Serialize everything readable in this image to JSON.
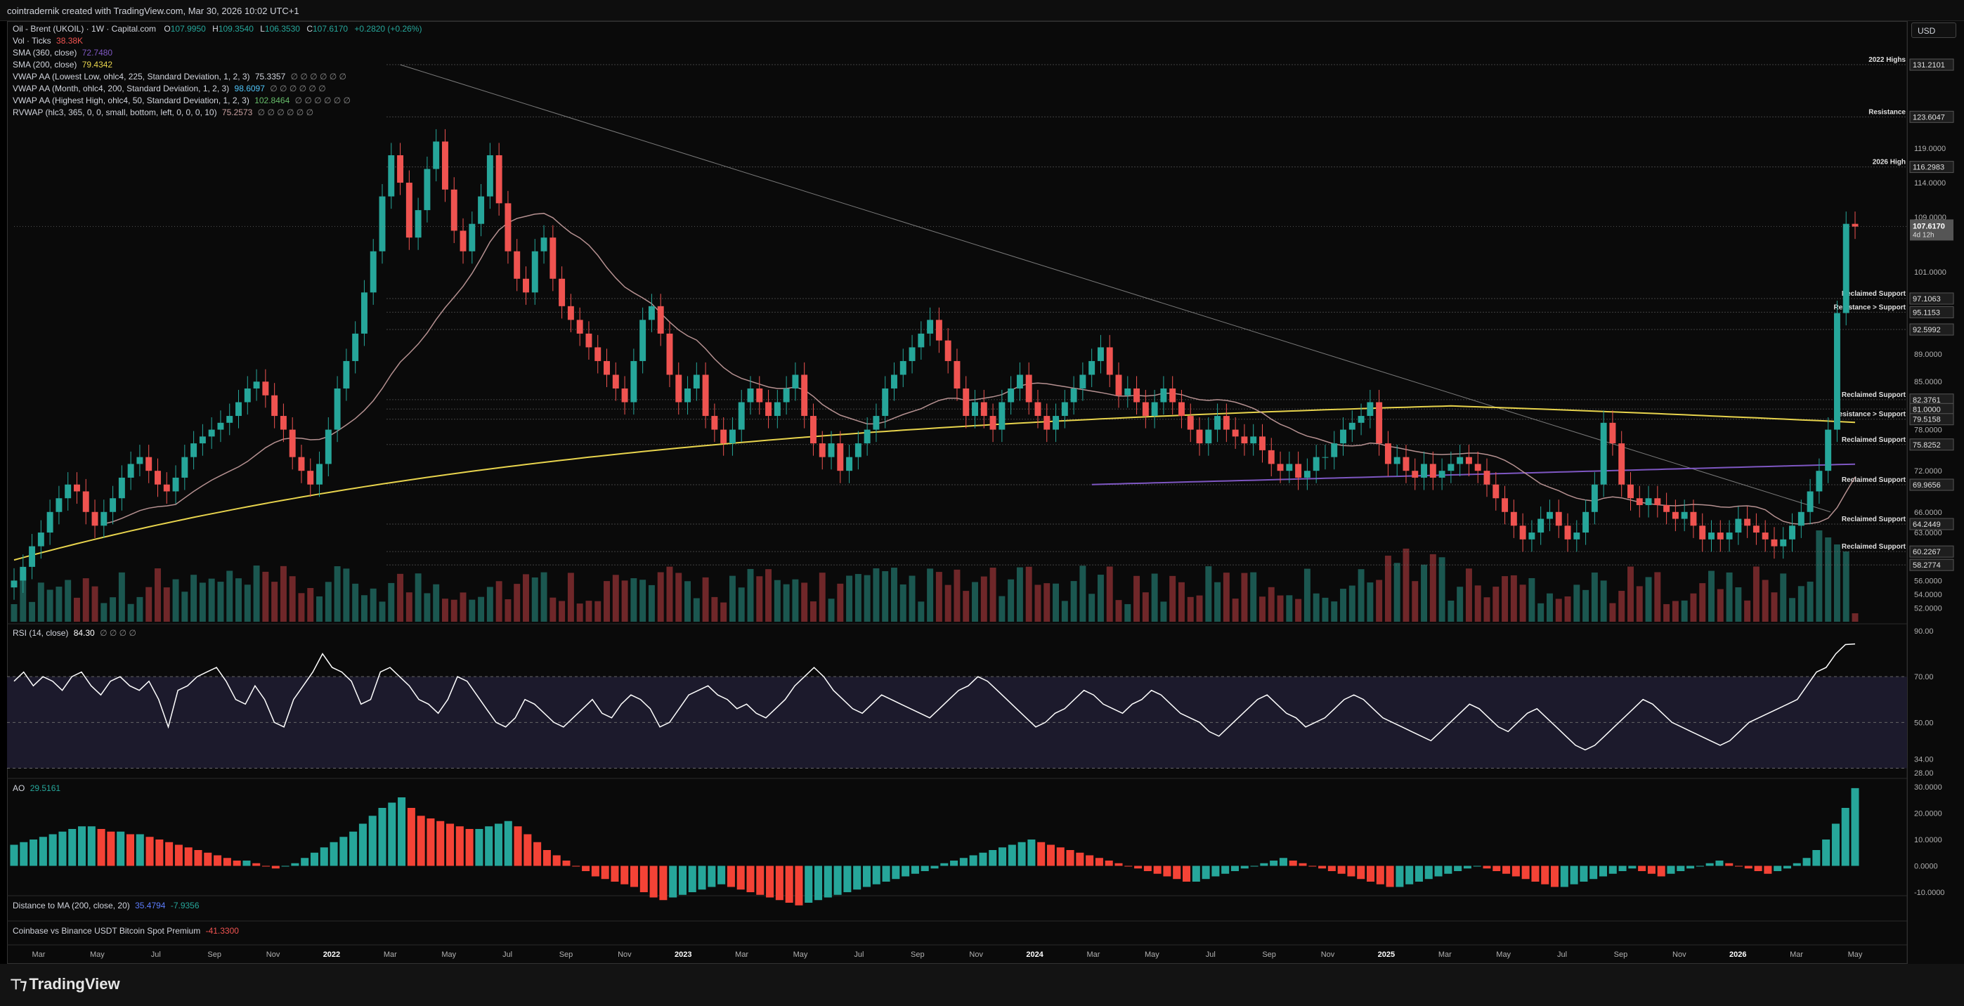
{
  "header": {
    "title": "cointradernik created with TradingView.com, Mar 30, 2026 10:02 UTC+1"
  },
  "currency_button": "USD",
  "legend": {
    "symbol": "Oil - Brent (UKOIL) · 1W · Capital.com",
    "o_label": "O",
    "o": "107.9950",
    "h_label": "H",
    "h": "109.3540",
    "l_label": "L",
    "l": "106.3530",
    "c_label": "C",
    "c": "107.6170",
    "chg": "+0.2820 (+0.26%)",
    "vol_label": "Vol · Ticks",
    "vol": "38.38K",
    "sma360_label": "SMA (360, close)",
    "sma360": "72.7480",
    "sma200_label": "SMA (200, close)",
    "sma200": "79.4342",
    "vwap1_label": "VWAP AA (Lowest Low, ohlc4, 225, Standard Deviation, 1, 2, 3)",
    "vwap1": "75.3357",
    "vwap2_label": "VWAP AA (Month, ohlc4, 200, Standard Deviation, 1, 2, 3)",
    "vwap2": "98.6097",
    "vwap3_label": "VWAP AA (Highest High, ohlc4, 50, Standard Deviation, 1, 2, 3)",
    "vwap3": "102.8464",
    "rvwap_label": "RVWAP (hlc3, 365, 0, 0, small, bottom, left, 0, 0, 0, 10)",
    "rvwap": "75.2573",
    "empties": "∅ ∅ ∅ ∅ ∅ ∅"
  },
  "colors": {
    "up": "#26a69a",
    "down": "#ef5350",
    "sma200": "#e8d44d",
    "sma360": "#7e57c2",
    "vwap": "#c9a0a0",
    "rsi_fill": "#1c1a2c",
    "ao_up": "#26a69a",
    "ao_down": "#f44336",
    "grid": "#1a1a1a"
  },
  "rsi_panel": {
    "label": "RSI (14, close)",
    "value": "84.30",
    "empties": "∅ ∅ ∅ ∅"
  },
  "ao_panel": {
    "label": "AO",
    "value": "29.5161"
  },
  "distance_panel": {
    "label": "Distance to MA (200, close, 20)",
    "v1": "35.4794",
    "v2": "-7.9356"
  },
  "premium_panel": {
    "label": "Coinbase vs Binance USDT Bitcoin Spot Premium",
    "value": "-41.3300"
  },
  "footer": {
    "brand": "TradingView"
  },
  "chart_data": [
    {
      "type": "candlestick",
      "title": "Oil - Brent (UKOIL) · 1W · Capital.com",
      "ylim": [
        50.0,
        135.0
      ],
      "x_time_labels": [
        "Mar",
        "May",
        "Jul",
        "Sep",
        "Nov",
        "2022",
        "Mar",
        "May",
        "Jul",
        "Sep",
        "Nov",
        "2023",
        "Mar",
        "May",
        "Jul",
        "Sep",
        "Nov",
        "2024",
        "Mar",
        "May",
        "Jul",
        "Sep",
        "Nov",
        "2025",
        "Mar",
        "May",
        "Jul",
        "Sep",
        "Nov",
        "2026",
        "Mar",
        "May"
      ],
      "y_tick_labels": [
        "119.0000",
        "114.0000",
        "109.0000",
        "101.0000",
        "89.0000",
        "85.0000",
        "78.0000",
        "72.0000",
        "66.0000",
        "63.0000",
        "56.0000",
        "54.0000",
        "52.0000"
      ],
      "price_labels": [
        {
          "value": "131.2101",
          "num": 131.21,
          "note": "2022 Highs"
        },
        {
          "value": "123.6047",
          "num": 123.6,
          "note": "Resistance"
        },
        {
          "value": "116.2983",
          "num": 116.3,
          "note": "2026 High"
        },
        {
          "value": "97.1063",
          "num": 97.11,
          "note": "Reclaimed Support"
        },
        {
          "value": "95.1153",
          "num": 95.12,
          "note": "Resistance > Support"
        },
        {
          "value": "92.5992",
          "num": 92.6,
          "note": ""
        },
        {
          "value": "82.3761",
          "num": 82.38,
          "note": "Reclaimed Support"
        },
        {
          "value": "81.0000",
          "num": 81.0,
          "note": ""
        },
        {
          "value": "79.5158",
          "num": 79.52,
          "note": "Resistance > Support"
        },
        {
          "value": "75.8252",
          "num": 75.83,
          "note": "Reclaimed Support"
        },
        {
          "value": "69.9656",
          "num": 69.97,
          "note": "Reclaimed Support"
        },
        {
          "value": "64.2449",
          "num": 64.24,
          "note": "Reclaimed Support"
        },
        {
          "value": "60.2267",
          "num": 60.23,
          "note": "Reclaimed Support"
        },
        {
          "value": "58.2774",
          "num": 58.28,
          "note": ""
        }
      ],
      "last_price": {
        "value": "107.6170",
        "num": 107.62,
        "countdown": "4d 12h"
      },
      "closes": [
        56,
        58,
        61,
        63,
        66,
        68,
        70,
        69,
        66,
        64,
        66,
        68,
        71,
        73,
        74,
        72,
        70,
        69,
        71,
        74,
        76,
        77,
        78,
        79,
        80,
        82,
        84,
        85,
        83,
        80,
        78,
        74,
        72,
        70,
        73,
        78,
        84,
        88,
        92,
        98,
        104,
        112,
        118,
        114,
        106,
        110,
        116,
        120,
        113,
        107,
        104,
        108,
        112,
        118,
        111,
        104,
        100,
        98,
        104,
        106,
        100,
        96,
        94,
        92,
        90,
        88,
        86,
        84,
        82,
        88,
        94,
        96,
        92,
        86,
        82,
        84,
        86,
        80,
        78,
        76,
        78,
        82,
        84,
        82,
        80,
        82,
        84,
        86,
        80,
        76,
        74,
        76,
        72,
        74,
        76,
        78,
        80,
        84,
        86,
        88,
        90,
        92,
        94,
        91,
        88,
        84,
        80,
        82,
        80,
        78,
        82,
        84,
        86,
        82,
        80,
        78,
        80,
        82,
        84,
        86,
        88,
        90,
        86,
        83,
        84,
        82,
        80,
        82,
        84,
        82,
        80,
        78,
        76,
        78,
        80,
        78,
        77,
        76,
        77,
        75,
        73,
        72,
        73,
        71,
        72,
        74,
        74,
        76,
        78,
        79,
        80,
        82,
        76,
        73,
        74,
        72,
        71,
        73,
        71,
        72,
        73,
        74,
        73,
        72,
        70,
        68,
        66,
        64,
        62,
        63,
        65,
        66,
        64,
        62,
        63,
        66,
        70,
        79,
        76,
        70,
        68,
        67,
        68,
        67,
        66,
        65,
        66,
        64,
        62,
        63,
        62,
        63,
        65,
        64,
        63,
        62,
        61,
        62,
        64,
        66,
        69,
        72,
        78,
        95,
        108,
        107.6
      ],
      "volume_note": "relative volume bars (Vol · Ticks)"
    },
    {
      "type": "line",
      "title": "RSI (14, close)",
      "ylim": [
        28,
        90
      ],
      "y_tick_labels": [
        "90.00",
        "70.00",
        "50.00",
        "34.00",
        "28.00"
      ],
      "values": [
        68,
        72,
        66,
        70,
        68,
        64,
        70,
        72,
        66,
        62,
        68,
        70,
        66,
        64,
        68,
        60,
        48,
        64,
        66,
        70,
        72,
        74,
        68,
        60,
        58,
        66,
        60,
        50,
        48,
        60,
        66,
        72,
        80,
        74,
        72,
        68,
        58,
        60,
        72,
        74,
        70,
        66,
        60,
        58,
        54,
        60,
        70,
        68,
        62,
        56,
        50,
        48,
        52,
        60,
        58,
        54,
        50,
        48,
        52,
        56,
        60,
        54,
        52,
        58,
        62,
        60,
        56,
        48,
        50,
        56,
        62,
        64,
        66,
        62,
        60,
        56,
        58,
        54,
        52,
        56,
        60,
        66,
        70,
        74,
        70,
        64,
        60,
        56,
        54,
        58,
        62,
        60,
        58,
        56,
        54,
        52,
        56,
        60,
        64,
        66,
        70,
        68,
        64,
        60,
        56,
        52,
        48,
        50,
        54,
        56,
        60,
        64,
        62,
        58,
        56,
        54,
        58,
        60,
        64,
        62,
        58,
        54,
        52,
        50,
        46,
        44,
        48,
        52,
        56,
        60,
        62,
        58,
        54,
        52,
        48,
        50,
        52,
        56,
        60,
        62,
        60,
        56,
        52,
        50,
        48,
        46,
        44,
        42,
        46,
        50,
        54,
        58,
        56,
        52,
        48,
        46,
        50,
        54,
        56,
        52,
        48,
        44,
        40,
        38,
        40,
        44,
        48,
        52,
        56,
        60,
        58,
        54,
        50,
        48,
        46,
        44,
        42,
        40,
        42,
        46,
        50,
        52,
        54,
        56,
        58,
        60,
        66,
        72,
        74,
        80,
        84,
        84.3
      ],
      "overbought": 70,
      "oversold": 30,
      "midline": 50
    },
    {
      "type": "histogram",
      "title": "AO",
      "ylim": [
        -10,
        30
      ],
      "y_tick_labels": [
        "30.0000",
        "20.0000",
        "10.0000",
        "0.0000",
        "-10.0000"
      ],
      "values": [
        8,
        9,
        10,
        11,
        12,
        13,
        14,
        15,
        15,
        14,
        13,
        13,
        12,
        12,
        11,
        10,
        9,
        8,
        7,
        6,
        5,
        4,
        3,
        2,
        2,
        1,
        0,
        -1,
        0,
        1,
        3,
        5,
        7,
        9,
        11,
        13,
        16,
        19,
        22,
        24,
        26,
        22,
        19,
        18,
        17,
        16,
        15,
        14,
        14,
        15,
        16,
        17,
        15,
        12,
        9,
        6,
        4,
        2,
        0,
        -2,
        -4,
        -5,
        -6,
        -7,
        -8,
        -10,
        -12,
        -13,
        -12,
        -11,
        -10,
        -9,
        -8,
        -7,
        -8,
        -9,
        -10,
        -11,
        -12,
        -13,
        -14,
        -15,
        -14,
        -13,
        -12,
        -11,
        -10,
        -9,
        -8,
        -7,
        -6,
        -5,
        -4,
        -3,
        -2,
        -1,
        1,
        2,
        3,
        4,
        5,
        6,
        7,
        8,
        9,
        10,
        9,
        8,
        7,
        6,
        5,
        4,
        3,
        2,
        1,
        0,
        -1,
        -2,
        -3,
        -4,
        -5,
        -6,
        -6,
        -5,
        -4,
        -3,
        -2,
        -1,
        0,
        1,
        2,
        3,
        2,
        1,
        0,
        -1,
        -2,
        -3,
        -4,
        -5,
        -6,
        -7,
        -8,
        -8,
        -7,
        -6,
        -5,
        -4,
        -3,
        -2,
        -1,
        0,
        -1,
        -2,
        -3,
        -4,
        -5,
        -6,
        -7,
        -8,
        -8,
        -7,
        -6,
        -5,
        -4,
        -3,
        -2,
        -1,
        -2,
        -3,
        -4,
        -3,
        -2,
        -1,
        0,
        1,
        2,
        1,
        0,
        -1,
        -2,
        -3,
        -2,
        -1,
        1,
        3,
        6,
        10,
        16,
        22,
        29.5
      ]
    }
  ]
}
